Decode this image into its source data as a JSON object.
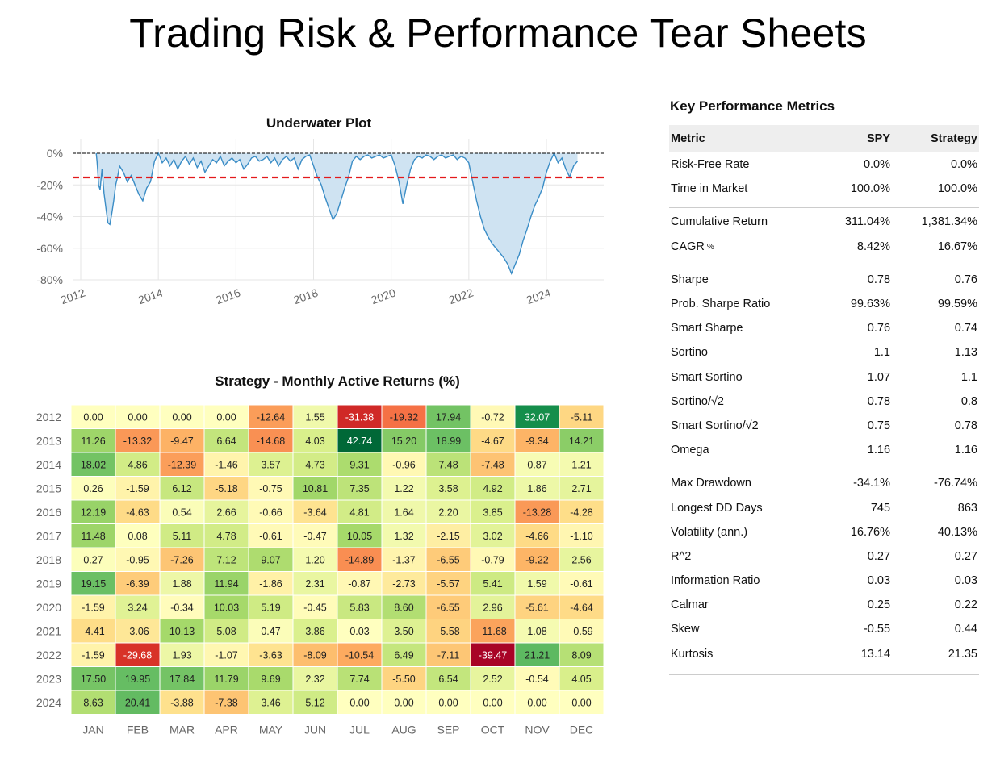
{
  "page_title": "Trading Risk & Performance Tear Sheets",
  "underwater": {
    "title": "Underwater Plot"
  },
  "heatmap": {
    "title": "Strategy - Monthly Active Returns (%)"
  },
  "metrics": {
    "title": "Key Performance Metrics",
    "headers": [
      "Metric",
      "SPY",
      "Strategy"
    ],
    "groups": [
      [
        {
          "label": "Risk-Free Rate",
          "spy": "0.0%",
          "strategy": "0.0%"
        },
        {
          "label": "Time in Market",
          "spy": "100.0%",
          "strategy": "100.0%"
        }
      ],
      [
        {
          "label": "Cumulative Return",
          "spy": "311.04%",
          "strategy": "1,381.34%"
        },
        {
          "label": "CAGR",
          "sup": "%",
          "spy": "8.42%",
          "strategy": "16.67%"
        }
      ],
      [
        {
          "label": "Sharpe",
          "spy": "0.78",
          "strategy": "0.76"
        },
        {
          "label": "Prob. Sharpe Ratio",
          "spy": "99.63%",
          "strategy": "99.59%"
        },
        {
          "label": "Smart Sharpe",
          "spy": "0.76",
          "strategy": "0.74"
        },
        {
          "label": "Sortino",
          "spy": "1.1",
          "strategy": "1.13"
        },
        {
          "label": "Smart Sortino",
          "spy": "1.07",
          "strategy": "1.1"
        },
        {
          "label": "Sortino/√2",
          "spy": "0.78",
          "strategy": "0.8"
        },
        {
          "label": "Smart Sortino/√2",
          "spy": "0.75",
          "strategy": "0.78"
        },
        {
          "label": "Omega",
          "spy": "1.16",
          "strategy": "1.16"
        }
      ],
      [
        {
          "label": "Max Drawdown",
          "spy": "-34.1%",
          "strategy": "-76.74%"
        },
        {
          "label": "Longest DD Days",
          "spy": "745",
          "strategy": "863"
        },
        {
          "label": "Volatility (ann.)",
          "spy": "16.76%",
          "strategy": "40.13%"
        },
        {
          "label": "R^2",
          "spy": "0.27",
          "strategy": "0.27"
        },
        {
          "label": "Information Ratio",
          "spy": "0.03",
          "strategy": "0.03"
        },
        {
          "label": "Calmar",
          "spy": "0.25",
          "strategy": "0.22"
        },
        {
          "label": "Skew",
          "spy": "-0.55",
          "strategy": "0.44"
        },
        {
          "label": "Kurtosis",
          "spy": "13.14",
          "strategy": "21.35"
        }
      ]
    ]
  },
  "colors": {
    "drawdown_line": "#3b8dc6",
    "drawdown_fill": "#cfe3f2",
    "mean_drawdown_line": "#e31a1c",
    "zero_line": "#000000"
  },
  "chart_data": [
    {
      "type": "area",
      "title": "Underwater Plot",
      "xlabel": "",
      "ylabel": "",
      "x_ticks": [
        "2012",
        "2014",
        "2016",
        "2018",
        "2020",
        "2022",
        "2024"
      ],
      "y_ticks": [
        "0%",
        "-20%",
        "-40%",
        "-60%",
        "-80%"
      ],
      "xlim": [
        2012.0,
        2025.4
      ],
      "ylim": [
        -82,
        0
      ],
      "grid": true,
      "reference_lines": [
        {
          "value": 0,
          "style": "dashed",
          "color": "#000000"
        },
        {
          "value": -15.3,
          "style": "dashed",
          "color": "#e31a1c"
        }
      ],
      "series": [
        {
          "x": [
            2012.4,
            2012.42,
            2012.44,
            2012.46,
            2012.5,
            2012.55,
            2012.6,
            2012.65,
            2012.7,
            2012.75,
            2012.8,
            2012.85,
            2012.9,
            2012.95,
            2013.0,
            2013.1,
            2013.2,
            2013.3,
            2013.4,
            2013.5,
            2013.6,
            2013.7,
            2013.8,
            2013.9,
            2014.0,
            2014.1,
            2014.2,
            2014.3,
            2014.4,
            2014.5,
            2014.6,
            2014.7,
            2014.8,
            2014.9,
            2015.0,
            2015.1,
            2015.2,
            2015.3,
            2015.4,
            2015.5,
            2015.6,
            2015.7,
            2015.8,
            2015.9,
            2016.0,
            2016.1,
            2016.2,
            2016.3,
            2016.4,
            2016.5,
            2016.6,
            2016.7,
            2016.8,
            2016.9,
            2017.0,
            2017.1,
            2017.2,
            2017.3,
            2017.4,
            2017.5,
            2017.6,
            2017.7,
            2017.8,
            2017.9,
            2018.0,
            2018.1,
            2018.2,
            2018.3,
            2018.4,
            2018.5,
            2018.6,
            2018.7,
            2018.8,
            2018.9,
            2019.0,
            2019.1,
            2019.2,
            2019.3,
            2019.4,
            2019.5,
            2019.6,
            2019.7,
            2019.8,
            2019.9,
            2020.0,
            2020.1,
            2020.2,
            2020.3,
            2020.4,
            2020.5,
            2020.6,
            2020.7,
            2020.8,
            2020.9,
            2021.0,
            2021.1,
            2021.2,
            2021.3,
            2021.4,
            2021.5,
            2021.6,
            2021.7,
            2021.8,
            2021.9,
            2022.0,
            2022.1,
            2022.2,
            2022.3,
            2022.4,
            2022.5,
            2022.6,
            2022.7,
            2022.8,
            2022.9,
            2023.0,
            2023.1,
            2023.2,
            2023.3,
            2023.4,
            2023.5,
            2023.6,
            2023.7,
            2023.8,
            2023.9,
            2024.0,
            2024.1,
            2024.2,
            2024.3,
            2024.4,
            2024.5,
            2024.6,
            2024.7,
            2024.8
          ],
          "values": [
            0,
            -5,
            -12,
            -20,
            -23,
            -10,
            -25,
            -35,
            -44,
            -45,
            -38,
            -30,
            -20,
            -15,
            -8,
            -12,
            -18,
            -14,
            -20,
            -26,
            -30,
            -22,
            -18,
            -5,
            0,
            -6,
            -3,
            -8,
            -4,
            -10,
            -5,
            -2,
            -7,
            -3,
            -9,
            -5,
            -12,
            -8,
            -4,
            -6,
            -2,
            -8,
            -5,
            -3,
            -6,
            -4,
            -10,
            -7,
            -3,
            -2,
            -5,
            -4,
            -2,
            -6,
            -3,
            -8,
            -4,
            -2,
            -5,
            -3,
            -10,
            -4,
            -2,
            -1,
            -8,
            -15,
            -20,
            -28,
            -35,
            -42,
            -38,
            -30,
            -22,
            -15,
            -5,
            -2,
            -4,
            -2,
            -1,
            -3,
            -2,
            -1,
            -3,
            -2,
            -1,
            -8,
            -18,
            -32,
            -20,
            -10,
            -4,
            -2,
            -3,
            -1,
            -2,
            -4,
            -2,
            -1,
            -3,
            -2,
            -1,
            -4,
            -2,
            -3,
            -6,
            -18,
            -30,
            -40,
            -48,
            -53,
            -57,
            -60,
            -63,
            -66,
            -70,
            -76,
            -70,
            -64,
            -55,
            -48,
            -40,
            -33,
            -28,
            -22,
            -12,
            -5,
            0,
            -6,
            -3,
            -10,
            -15,
            -8,
            -5
          ]
        }
      ]
    },
    {
      "type": "heatmap",
      "title": "Strategy - Monthly Active Returns (%)",
      "xlabel": "",
      "ylabel": "",
      "x": [
        "JAN",
        "FEB",
        "MAR",
        "APR",
        "MAY",
        "JUN",
        "JUL",
        "AUG",
        "SEP",
        "OCT",
        "NOV",
        "DEC"
      ],
      "y": [
        "2012",
        "2013",
        "2014",
        "2015",
        "2016",
        "2017",
        "2018",
        "2019",
        "2020",
        "2021",
        "2022",
        "2023",
        "2024"
      ],
      "values": [
        [
          "0.00",
          "0.00",
          "0.00",
          "0.00",
          "-12.64",
          "1.55",
          "-31.38",
          "-19.32",
          "17.94",
          "-0.72",
          "32.07",
          "-5.11"
        ],
        [
          "11.26",
          "-13.32",
          "-9.47",
          "6.64",
          "-14.68",
          "4.03",
          "42.74",
          "15.20",
          "18.99",
          "-4.67",
          "-9.34",
          "14.21"
        ],
        [
          "18.02",
          "4.86",
          "-12.39",
          "-1.46",
          "3.57",
          "4.73",
          "9.31",
          "-0.96",
          "7.48",
          "-7.48",
          "0.87",
          "1.21"
        ],
        [
          "0.26",
          "-1.59",
          "6.12",
          "-5.18",
          "-0.75",
          "10.81",
          "7.35",
          "1.22",
          "3.58",
          "4.92",
          "1.86",
          "2.71"
        ],
        [
          "12.19",
          "-4.63",
          "0.54",
          "2.66",
          "-0.66",
          "-3.64",
          "4.81",
          "1.64",
          "2.20",
          "3.85",
          "-13.28",
          "-4.28"
        ],
        [
          "11.48",
          "0.08",
          "5.11",
          "4.78",
          "-0.61",
          "-0.47",
          "10.05",
          "1.32",
          "-2.15",
          "3.02",
          "-4.66",
          "-1.10"
        ],
        [
          "0.27",
          "-0.95",
          "-7.26",
          "7.12",
          "9.07",
          "1.20",
          "-14.89",
          "-1.37",
          "-6.55",
          "-0.79",
          "-9.22",
          "2.56"
        ],
        [
          "19.15",
          "-6.39",
          "1.88",
          "11.94",
          "-1.86",
          "2.31",
          "-0.87",
          "-2.73",
          "-5.57",
          "5.41",
          "1.59",
          "-0.61"
        ],
        [
          "-1.59",
          "3.24",
          "-0.34",
          "10.03",
          "5.19",
          "-0.45",
          "5.83",
          "8.60",
          "-6.55",
          "2.96",
          "-5.61",
          "-4.64"
        ],
        [
          "-4.41",
          "-3.06",
          "10.13",
          "5.08",
          "0.47",
          "3.86",
          "0.03",
          "3.50",
          "-5.58",
          "-11.68",
          "1.08",
          "-0.59"
        ],
        [
          "-1.59",
          "-29.68",
          "1.93",
          "-1.07",
          "-3.63",
          "-8.09",
          "-10.54",
          "6.49",
          "-7.11",
          "-39.47",
          "21.21",
          "8.09"
        ],
        [
          "17.50",
          "19.95",
          "17.84",
          "11.79",
          "9.69",
          "2.32",
          "7.74",
          "-5.50",
          "6.54",
          "2.52",
          "-0.54",
          "4.05"
        ],
        [
          "8.63",
          "20.41",
          "-3.88",
          "-7.38",
          "3.46",
          "5.12",
          "0.00",
          "0.00",
          "0.00",
          "0.00",
          "0.00",
          "0.00"
        ]
      ]
    }
  ]
}
